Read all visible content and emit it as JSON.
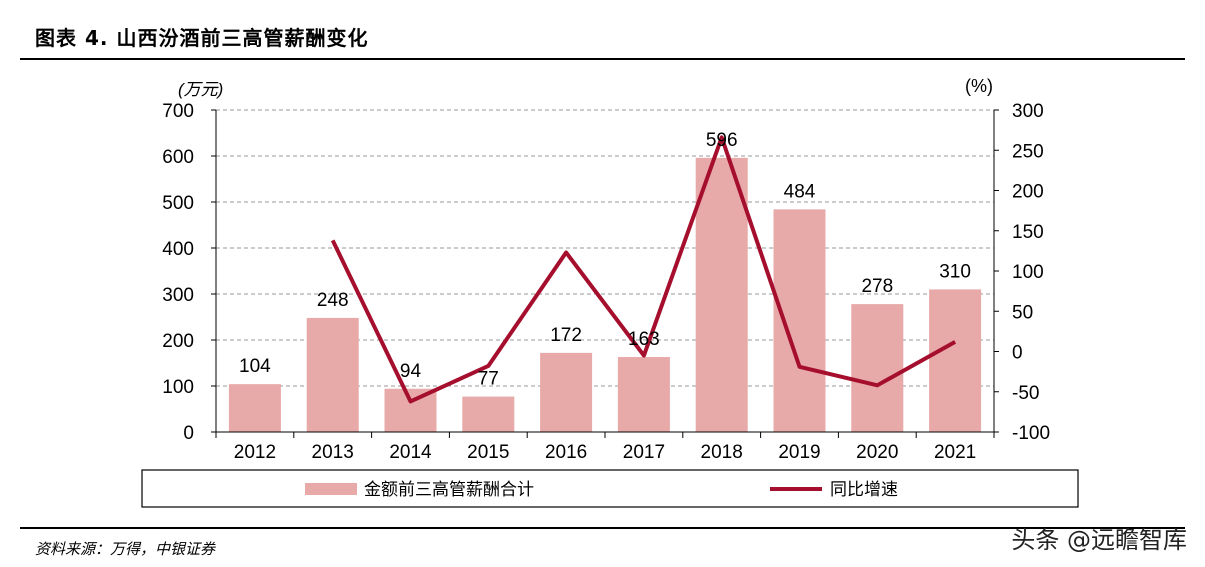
{
  "header": {
    "title": "图表 4. 山西汾酒前三高管薪酬变化"
  },
  "footer": {
    "source": "资料来源：万得，中银证券",
    "watermark": "头条 @远瞻智库"
  },
  "colors": {
    "bar": "#e8a9a9",
    "line": "#a50f2d",
    "grid": "#999999"
  },
  "chart_data": {
    "type": "bar+line",
    "categories": [
      "2012",
      "2013",
      "2014",
      "2015",
      "2016",
      "2017",
      "2018",
      "2019",
      "2020",
      "2021"
    ],
    "series": [
      {
        "name": "金额前三高管薪酬合计",
        "type": "bar",
        "axis": "left",
        "values": [
          104,
          248,
          94,
          77,
          172,
          163,
          596,
          484,
          278,
          310
        ]
      },
      {
        "name": "同比增速",
        "type": "line",
        "axis": "right",
        "values": [
          null,
          138,
          -62,
          -18,
          123,
          -5,
          266,
          -19,
          -42,
          12
        ]
      }
    ],
    "y_left": {
      "unit": "(万元)",
      "lim": [
        0,
        700
      ],
      "ticks": [
        "0",
        "100",
        "200",
        "300",
        "400",
        "500",
        "600",
        "700"
      ]
    },
    "y_right": {
      "unit": "(%)",
      "lim": [
        -100,
        300
      ],
      "ticks": [
        "-100",
        "-50",
        "0",
        "50",
        "100",
        "150",
        "200",
        "250",
        "300"
      ]
    },
    "bar_labels": [
      "104",
      "248",
      "94",
      "77",
      "172",
      "163",
      "596",
      "484",
      "278",
      "310"
    ],
    "grid": true,
    "legend": {
      "position": "bottom",
      "entries": [
        "金额前三高管薪酬合计",
        "同比增速"
      ]
    }
  }
}
